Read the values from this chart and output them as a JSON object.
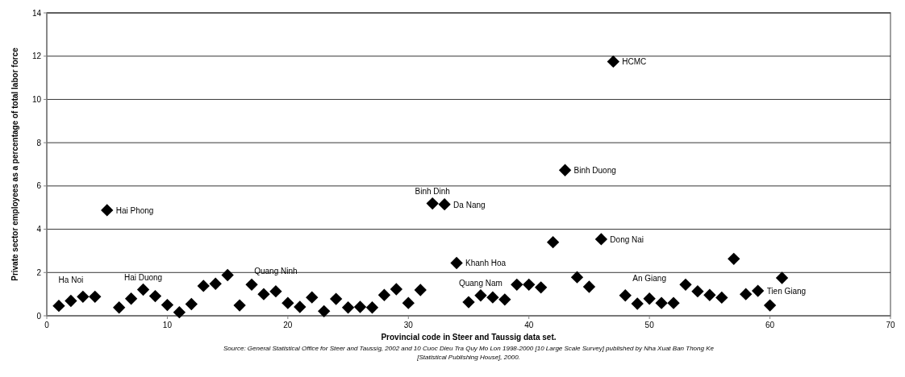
{
  "chart_data": {
    "type": "scatter",
    "xlabel": "Provincial code in Steer and Taussig data set.",
    "ylabel": "Private sector employees as a percentage of total labor force",
    "x": [
      1,
      2,
      3,
      4,
      5,
      6,
      7,
      8,
      9,
      10,
      11,
      12,
      13,
      14,
      15,
      16,
      17,
      18,
      19,
      20,
      21,
      22,
      23,
      24,
      25,
      26,
      27,
      28,
      29,
      30,
      31,
      32,
      33,
      34,
      35,
      36,
      37,
      38,
      39,
      40,
      41,
      42,
      43,
      44,
      45,
      46,
      47,
      48,
      49,
      50,
      51,
      52,
      53,
      54,
      55,
      56,
      57,
      58,
      59,
      60,
      61
    ],
    "series": [
      {
        "color": "#000000",
        "values": [
          0.46,
          0.69,
          0.88,
          0.88,
          4.88,
          0.38,
          0.79,
          1.21,
          0.91,
          0.5,
          0.16,
          0.54,
          1.38,
          1.48,
          1.88,
          0.48,
          1.44,
          1.0,
          1.13,
          0.59,
          0.41,
          0.85,
          0.21,
          0.78,
          0.38,
          0.41,
          0.38,
          0.96,
          1.23,
          0.59,
          1.19,
          5.19,
          5.15,
          2.44,
          0.63,
          0.94,
          0.85,
          0.75,
          1.44,
          1.44,
          1.31,
          3.4,
          6.73,
          1.78,
          1.34,
          3.54,
          11.75,
          0.94,
          0.56,
          0.79,
          0.59,
          0.59,
          1.44,
          1.13,
          0.96,
          0.84,
          2.63,
          1.0,
          1.15,
          0.48,
          1.75
        ]
      }
    ],
    "xlim": [
      0,
      70
    ],
    "xticks": [
      0,
      10,
      20,
      30,
      40,
      50,
      60,
      70
    ],
    "ylim": [
      0,
      14
    ],
    "yticks": [
      0,
      2,
      4,
      6,
      8,
      10,
      12,
      14
    ],
    "grid": "y",
    "marker": "diamond",
    "annotations": [
      {
        "text": "Ha Noi",
        "x": 2,
        "y": 0.69
      },
      {
        "text": "Hai Phong",
        "x": 5,
        "y": 4.88
      },
      {
        "text": "Hai Duong",
        "x": 8,
        "y": 1.21
      },
      {
        "text": "Quang Ninh",
        "x": 19,
        "y": 1.13
      },
      {
        "text": "Binh Dinh",
        "x": 32,
        "y": 5.19
      },
      {
        "text": "Da Nang",
        "x": 33,
        "y": 5.15
      },
      {
        "text": "Khanh Hoa",
        "x": 34,
        "y": 2.44
      },
      {
        "text": "Quang Nam",
        "x": 36,
        "y": 0.94
      },
      {
        "text": "Binh Duong",
        "x": 43,
        "y": 6.73
      },
      {
        "text": "Dong Nai",
        "x": 46,
        "y": 3.54
      },
      {
        "text": "HCMC",
        "x": 47,
        "y": 11.75
      },
      {
        "text": "An Giang",
        "x": 50,
        "y": 0.79
      },
      {
        "text": "Tien Giang",
        "x": 59,
        "y": 1.15
      },
      "Source: General Statistical Office for Steer and Taussig, 2002 and 10 Cuoc Dieu Tra Quy Mo Lon 1998-2000 [10 Large Scale Survey] published by Nha Xuat Ban Thong Ke [Statistical Publishing House], 2000."
    ]
  }
}
